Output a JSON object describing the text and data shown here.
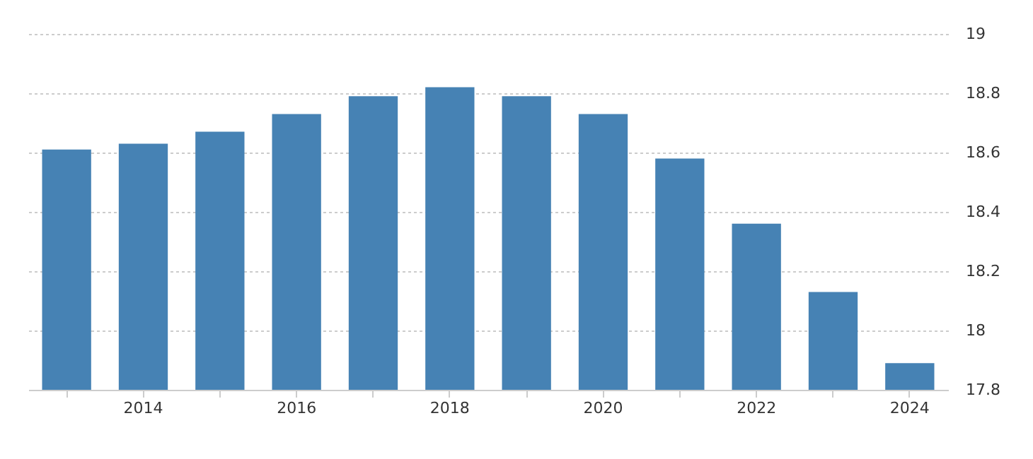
{
  "chart_data": {
    "type": "bar",
    "categories": [
      null,
      "2014",
      null,
      "2016",
      null,
      "2018",
      null,
      "2020",
      null,
      "2022",
      null,
      "2024"
    ],
    "values": [
      18.61,
      18.63,
      18.67,
      18.73,
      18.79,
      18.82,
      18.79,
      18.73,
      18.58,
      18.36,
      18.13,
      17.89
    ],
    "color": "#4682b4",
    "ylim": [
      17.8,
      19
    ],
    "yticks": [
      17.8,
      18,
      18.2,
      18.4,
      18.6,
      18.8,
      19
    ],
    "grid": "y"
  }
}
